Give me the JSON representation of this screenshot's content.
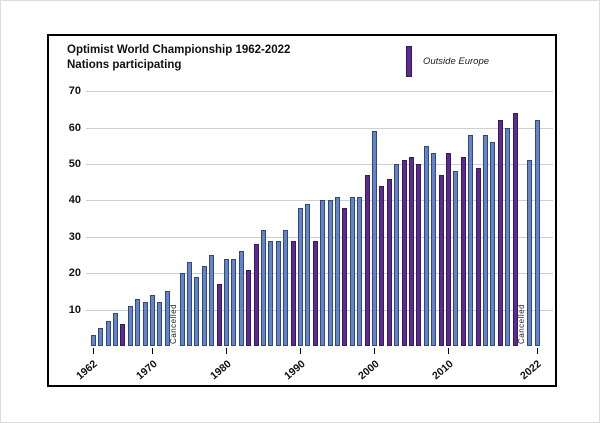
{
  "figure": {
    "title_line1": "Optimist World Championship 1962-2022",
    "title_line2": "Nations participating",
    "legend": {
      "label": "Outside Europe"
    },
    "cancelled_label": "Cancelled"
  },
  "chart_data": {
    "type": "bar",
    "title": "Optimist World Championship 1962-2022 Nations participating",
    "xlabel": "",
    "ylabel": "",
    "ylim": [
      0,
      70
    ],
    "grid": true,
    "legend_position": "top-right",
    "yticks": [
      10,
      20,
      30,
      40,
      50,
      60,
      70
    ],
    "xticks": [
      1962,
      1970,
      1980,
      1990,
      2000,
      2010,
      2022
    ],
    "cancelled_years": [
      1973,
      2020
    ],
    "colors": {
      "europe_fill": "#6384c6",
      "europe_border": "#31477e",
      "outside_fill": "#5b2b8f",
      "outside_border": "#38195f"
    },
    "series": [
      {
        "year": 1962,
        "nations": 3,
        "outside_europe": false
      },
      {
        "year": 1963,
        "nations": 5,
        "outside_europe": false
      },
      {
        "year": 1964,
        "nations": 7,
        "outside_europe": false
      },
      {
        "year": 1965,
        "nations": 9,
        "outside_europe": false
      },
      {
        "year": 1966,
        "nations": 6,
        "outside_europe": true
      },
      {
        "year": 1967,
        "nations": 11,
        "outside_europe": false
      },
      {
        "year": 1968,
        "nations": 13,
        "outside_europe": false
      },
      {
        "year": 1969,
        "nations": 12,
        "outside_europe": false
      },
      {
        "year": 1970,
        "nations": 14,
        "outside_europe": false
      },
      {
        "year": 1971,
        "nations": 12,
        "outside_europe": false
      },
      {
        "year": 1972,
        "nations": 15,
        "outside_europe": false
      },
      {
        "year": 1973,
        "nations": null,
        "cancelled": true
      },
      {
        "year": 1974,
        "nations": 20,
        "outside_europe": false
      },
      {
        "year": 1975,
        "nations": 23,
        "outside_europe": false
      },
      {
        "year": 1976,
        "nations": 19,
        "outside_europe": false
      },
      {
        "year": 1977,
        "nations": 22,
        "outside_europe": false
      },
      {
        "year": 1978,
        "nations": 25,
        "outside_europe": false
      },
      {
        "year": 1979,
        "nations": 17,
        "outside_europe": true
      },
      {
        "year": 1980,
        "nations": 24,
        "outside_europe": false
      },
      {
        "year": 1981,
        "nations": 24,
        "outside_europe": false
      },
      {
        "year": 1982,
        "nations": 26,
        "outside_europe": false
      },
      {
        "year": 1983,
        "nations": 21,
        "outside_europe": true
      },
      {
        "year": 1984,
        "nations": 28,
        "outside_europe": true
      },
      {
        "year": 1985,
        "nations": 32,
        "outside_europe": false
      },
      {
        "year": 1986,
        "nations": 29,
        "outside_europe": false
      },
      {
        "year": 1987,
        "nations": 29,
        "outside_europe": false
      },
      {
        "year": 1988,
        "nations": 32,
        "outside_europe": false
      },
      {
        "year": 1989,
        "nations": 29,
        "outside_europe": true
      },
      {
        "year": 1990,
        "nations": 38,
        "outside_europe": false
      },
      {
        "year": 1991,
        "nations": 39,
        "outside_europe": false
      },
      {
        "year": 1992,
        "nations": 29,
        "outside_europe": true
      },
      {
        "year": 1993,
        "nations": 40,
        "outside_europe": false
      },
      {
        "year": 1994,
        "nations": 40,
        "outside_europe": false
      },
      {
        "year": 1995,
        "nations": 41,
        "outside_europe": false
      },
      {
        "year": 1996,
        "nations": 38,
        "outside_europe": true
      },
      {
        "year": 1997,
        "nations": 41,
        "outside_europe": false
      },
      {
        "year": 1998,
        "nations": 41,
        "outside_europe": false
      },
      {
        "year": 1999,
        "nations": 47,
        "outside_europe": true
      },
      {
        "year": 2000,
        "nations": 59,
        "outside_europe": false
      },
      {
        "year": 2001,
        "nations": 44,
        "outside_europe": true
      },
      {
        "year": 2002,
        "nations": 46,
        "outside_europe": true
      },
      {
        "year": 2003,
        "nations": 50,
        "outside_europe": false
      },
      {
        "year": 2004,
        "nations": 51,
        "outside_europe": true
      },
      {
        "year": 2005,
        "nations": 52,
        "outside_europe": true
      },
      {
        "year": 2006,
        "nations": 50,
        "outside_europe": true
      },
      {
        "year": 2007,
        "nations": 55,
        "outside_europe": false
      },
      {
        "year": 2008,
        "nations": 53,
        "outside_europe": false
      },
      {
        "year": 2009,
        "nations": 47,
        "outside_europe": true
      },
      {
        "year": 2010,
        "nations": 53,
        "outside_europe": true
      },
      {
        "year": 2011,
        "nations": 48,
        "outside_europe": false
      },
      {
        "year": 2012,
        "nations": 52,
        "outside_europe": true
      },
      {
        "year": 2013,
        "nations": 58,
        "outside_europe": false
      },
      {
        "year": 2014,
        "nations": 49,
        "outside_europe": true
      },
      {
        "year": 2015,
        "nations": 58,
        "outside_europe": false
      },
      {
        "year": 2016,
        "nations": 56,
        "outside_europe": false
      },
      {
        "year": 2017,
        "nations": 62,
        "outside_europe": true
      },
      {
        "year": 2018,
        "nations": 60,
        "outside_europe": false
      },
      {
        "year": 2019,
        "nations": 64,
        "outside_europe": true
      },
      {
        "year": 2020,
        "nations": null,
        "cancelled": true
      },
      {
        "year": 2021,
        "nations": 51,
        "outside_europe": false
      },
      {
        "year": 2022,
        "nations": 62,
        "outside_europe": false
      }
    ]
  }
}
